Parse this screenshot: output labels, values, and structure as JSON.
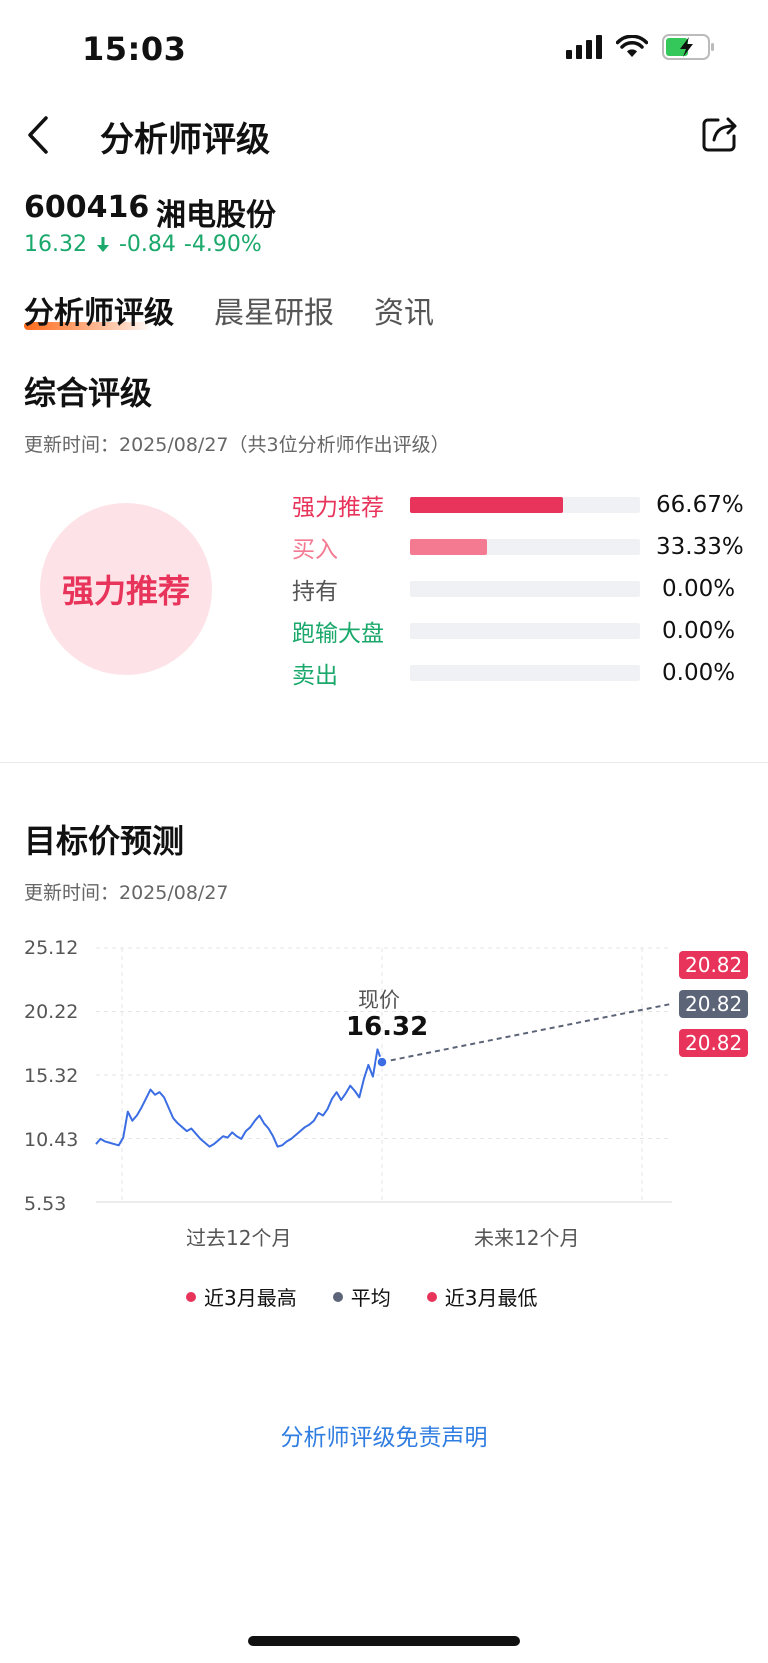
{
  "status": {
    "time": "15:03"
  },
  "nav": {
    "title": "分析师评级"
  },
  "stock": {
    "code": "600416",
    "name": "湘电股份",
    "price": "16.32",
    "change": "-0.84",
    "change_pct": "-4.90%"
  },
  "tabs": [
    {
      "label": "分析师评级"
    },
    {
      "label": "晨星研报"
    },
    {
      "label": "资讯"
    }
  ],
  "overall": {
    "title": "综合评级",
    "update": "更新时间：2025/08/27（共3位分析师作出评级）",
    "badge": "强力推荐",
    "ratings": [
      {
        "label": "强力推荐",
        "pct": "66.67%",
        "value": 0.6667,
        "color": "#e8335a"
      },
      {
        "label": "买入",
        "pct": "33.33%",
        "value": 0.3333,
        "color": "#f47a92"
      },
      {
        "label": "持有",
        "pct": "0.00%",
        "value": 0,
        "color": "#555555"
      },
      {
        "label": "跑输大盘",
        "pct": "0.00%",
        "value": 0,
        "color": "#1aa86b"
      },
      {
        "label": "卖出",
        "pct": "0.00%",
        "value": 0,
        "color": "#1aa86b"
      }
    ]
  },
  "target": {
    "title": "目标价预测",
    "update": "更新时间：2025/08/27",
    "current_label": "现价",
    "current_value": "16.32",
    "high_pill": "20.82",
    "avg_pill": "20.82",
    "low_pill": "20.82"
  },
  "chart_data": {
    "type": "line",
    "y_ticks": [
      "25.12",
      "20.22",
      "15.32",
      "10.43",
      "5.53"
    ],
    "ylim": [
      5.53,
      25.12
    ],
    "x_labels": [
      "过去12个月",
      "未来12个月"
    ],
    "series": [
      {
        "name": "history",
        "values": [
          10.0,
          10.4,
          10.2,
          10.1,
          10.0,
          9.9,
          10.5,
          12.5,
          11.8,
          12.2,
          12.8,
          13.5,
          14.2,
          13.8,
          14.0,
          13.6,
          12.8,
          12.0,
          11.6,
          11.3,
          11.0,
          11.2,
          10.8,
          10.4,
          10.1,
          9.8,
          10.0,
          10.3,
          10.6,
          10.5,
          10.9,
          10.6,
          10.4,
          11.0,
          11.3,
          11.8,
          12.2,
          11.6,
          11.2,
          10.6,
          9.8,
          9.9,
          10.2,
          10.4,
          10.7,
          11.0,
          11.3,
          11.5,
          11.8,
          12.4,
          12.2,
          12.7,
          13.5,
          14.0,
          13.4,
          13.9,
          14.5,
          14.1,
          13.6,
          15.0,
          16.1,
          15.2,
          17.3,
          16.32
        ]
      },
      {
        "name": "平均",
        "values": [
          16.32,
          20.82
        ]
      }
    ],
    "legend": [
      "近3月最高",
      "平均",
      "近3月最低"
    ],
    "legend_colors": [
      "#e8335a",
      "#5c6478",
      "#e8335a"
    ],
    "target_high": 20.82,
    "target_avg": 20.82,
    "target_low": 20.82,
    "current": 16.32
  },
  "disclaimer": "分析师评级免责声明"
}
